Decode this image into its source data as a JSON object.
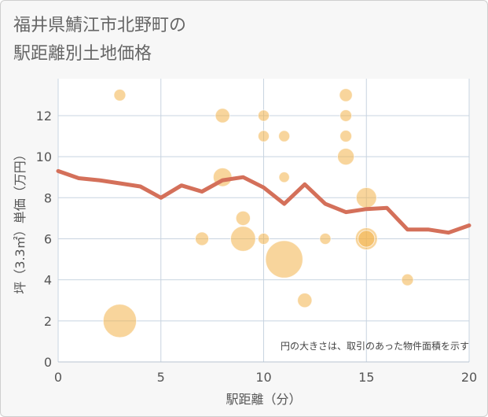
{
  "chart_data": {
    "type": "scatter",
    "title": "福井県鯖江市北野町の駅距離別土地価格",
    "title_lines": [
      "福井県鯖江市北野町の",
      "駅距離別土地価格"
    ],
    "xlabel": "駅距離（分）",
    "ylabel": "坪（3.3㎡）単価（万円）",
    "xlim": [
      0,
      20
    ],
    "ylim": [
      0,
      13.8
    ],
    "x_ticks": [
      "0",
      "5",
      "10",
      "15",
      "20"
    ],
    "y_ticks": [
      "0",
      "2",
      "4",
      "6",
      "8",
      "10",
      "12"
    ],
    "grid": true,
    "note": "円の大きさは、取引のあった物件面積を示す",
    "colors": {
      "bubble": "#f2b24a",
      "line": "#d4705a",
      "grid": "#c8d4e0",
      "background": "#f7f7f7"
    },
    "series": [
      {
        "kind": "bubble",
        "points": [
          {
            "x": 3,
            "y": 13,
            "size": 1
          },
          {
            "x": 3,
            "y": 2,
            "size": 8
          },
          {
            "x": 7,
            "y": 6,
            "size": 1.3
          },
          {
            "x": 8,
            "y": 12,
            "size": 1.5
          },
          {
            "x": 8,
            "y": 9,
            "size": 2.5
          },
          {
            "x": 9,
            "y": 7,
            "size": 1.5
          },
          {
            "x": 9,
            "y": 6,
            "size": 4.5
          },
          {
            "x": 10,
            "y": 12,
            "size": 0.9
          },
          {
            "x": 10,
            "y": 11,
            "size": 0.9
          },
          {
            "x": 10,
            "y": 6,
            "size": 0.9
          },
          {
            "x": 11,
            "y": 11,
            "size": 0.9
          },
          {
            "x": 11,
            "y": 9,
            "size": 0.8
          },
          {
            "x": 11,
            "y": 5,
            "size": 10
          },
          {
            "x": 12,
            "y": 3,
            "size": 1.5
          },
          {
            "x": 13,
            "y": 6,
            "size": 0.9
          },
          {
            "x": 14,
            "y": 13,
            "size": 1.2
          },
          {
            "x": 14,
            "y": 12,
            "size": 1.0
          },
          {
            "x": 14,
            "y": 11,
            "size": 1.0
          },
          {
            "x": 14,
            "y": 10,
            "size": 2.0
          },
          {
            "x": 15,
            "y": 8,
            "size": 3.0
          },
          {
            "x": 15,
            "y": 6,
            "size": 3.5
          },
          {
            "x": 15,
            "y": 6,
            "size": 2.0
          },
          {
            "x": 17,
            "y": 4,
            "size": 1.0
          }
        ]
      },
      {
        "kind": "line",
        "x": [
          0,
          1,
          2,
          3,
          4,
          5,
          6,
          7,
          8,
          9,
          10,
          11,
          12,
          13,
          14,
          15,
          16,
          17,
          18,
          19,
          20
        ],
        "y": [
          9.3,
          8.95,
          8.85,
          8.7,
          8.55,
          8.0,
          8.6,
          8.3,
          8.85,
          9.0,
          8.5,
          7.7,
          8.65,
          7.7,
          7.3,
          7.45,
          7.5,
          6.45,
          6.45,
          6.3,
          6.65
        ]
      }
    ]
  }
}
